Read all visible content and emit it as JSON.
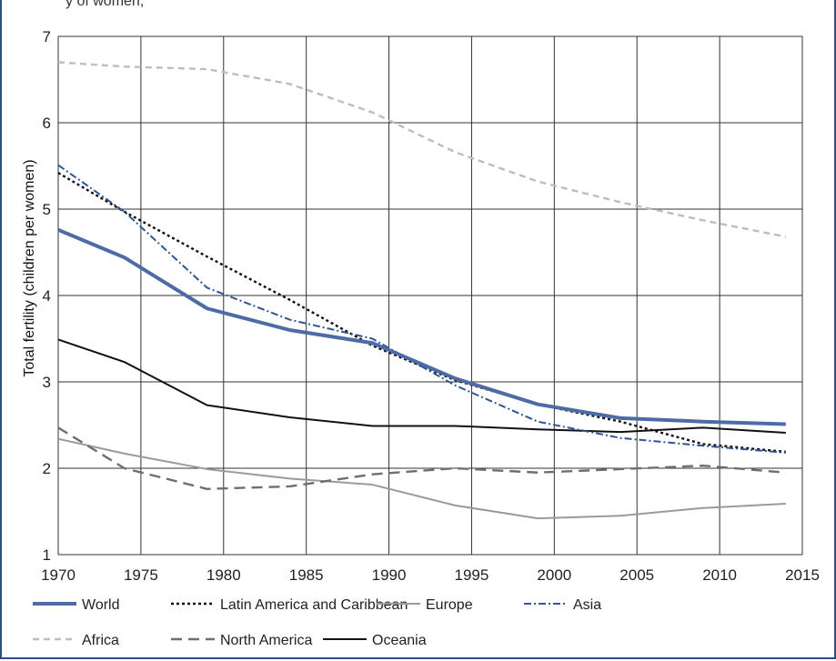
{
  "header_fragment": "y of women,",
  "chart_data": {
    "type": "line",
    "ylabel": "Total fertility (children per women)",
    "xlabel": "",
    "xlim": [
      1970,
      2015
    ],
    "ylim": [
      1,
      7
    ],
    "x_ticks": [
      1970,
      1975,
      1980,
      1985,
      1990,
      1995,
      2000,
      2005,
      2010,
      2015
    ],
    "y_ticks": [
      1,
      2,
      3,
      4,
      5,
      6,
      7
    ],
    "grid": true,
    "legend_position": "bottom",
    "series": [
      {
        "name": "World",
        "color": "#4e6ba6",
        "style": "solid-thick",
        "x": [
          1970,
          1974,
          1979,
          1984,
          1989,
          1994,
          1999,
          2004,
          2009,
          2014
        ],
        "y": [
          4.76,
          4.44,
          3.85,
          3.6,
          3.45,
          3.04,
          2.74,
          2.58,
          2.54,
          2.51
        ]
      },
      {
        "name": "Latin America and Caribbean",
        "color": "#111111",
        "style": "dotted",
        "x": [
          1970,
          1974,
          1979,
          1984,
          1989,
          1994,
          1999,
          2004,
          2009,
          2014
        ],
        "y": [
          5.42,
          4.97,
          4.45,
          3.95,
          3.42,
          3.02,
          2.74,
          2.54,
          2.28,
          2.19
        ]
      },
      {
        "name": "Europe",
        "color": "#9a9a9a",
        "style": "solid",
        "x": [
          1970,
          1974,
          1979,
          1984,
          1989,
          1994,
          1999,
          2004,
          2009,
          2014
        ],
        "y": [
          2.34,
          2.17,
          1.99,
          1.88,
          1.81,
          1.57,
          1.42,
          1.45,
          1.54,
          1.59
        ]
      },
      {
        "name": "Asia",
        "color": "#2f5597",
        "style": "dash-dot",
        "x": [
          1970,
          1974,
          1979,
          1984,
          1989,
          1994,
          1999,
          2004,
          2009,
          2014
        ],
        "y": [
          5.51,
          4.97,
          4.09,
          3.72,
          3.5,
          2.96,
          2.54,
          2.35,
          2.26,
          2.18
        ]
      },
      {
        "name": "Africa",
        "color": "#bdbdbd",
        "style": "dashed-light",
        "x": [
          1970,
          1974,
          1979,
          1984,
          1989,
          1994,
          1999,
          2004,
          2009,
          2014
        ],
        "y": [
          6.7,
          6.65,
          6.62,
          6.45,
          6.12,
          5.66,
          5.32,
          5.08,
          4.87,
          4.68
        ]
      },
      {
        "name": "North America",
        "color": "#6e6e6e",
        "style": "dashed",
        "x": [
          1970,
          1974,
          1979,
          1984,
          1989,
          1994,
          1999,
          2004,
          2009,
          2014
        ],
        "y": [
          2.47,
          2.0,
          1.76,
          1.79,
          1.93,
          2.0,
          1.95,
          1.99,
          2.03,
          1.95
        ]
      },
      {
        "name": "Oceania",
        "color": "#111111",
        "style": "solid",
        "x": [
          1970,
          1974,
          1979,
          1984,
          1989,
          1994,
          1999,
          2004,
          2009,
          2014
        ],
        "y": [
          3.49,
          3.23,
          2.73,
          2.59,
          2.49,
          2.49,
          2.45,
          2.42,
          2.47,
          2.41
        ]
      }
    ]
  }
}
